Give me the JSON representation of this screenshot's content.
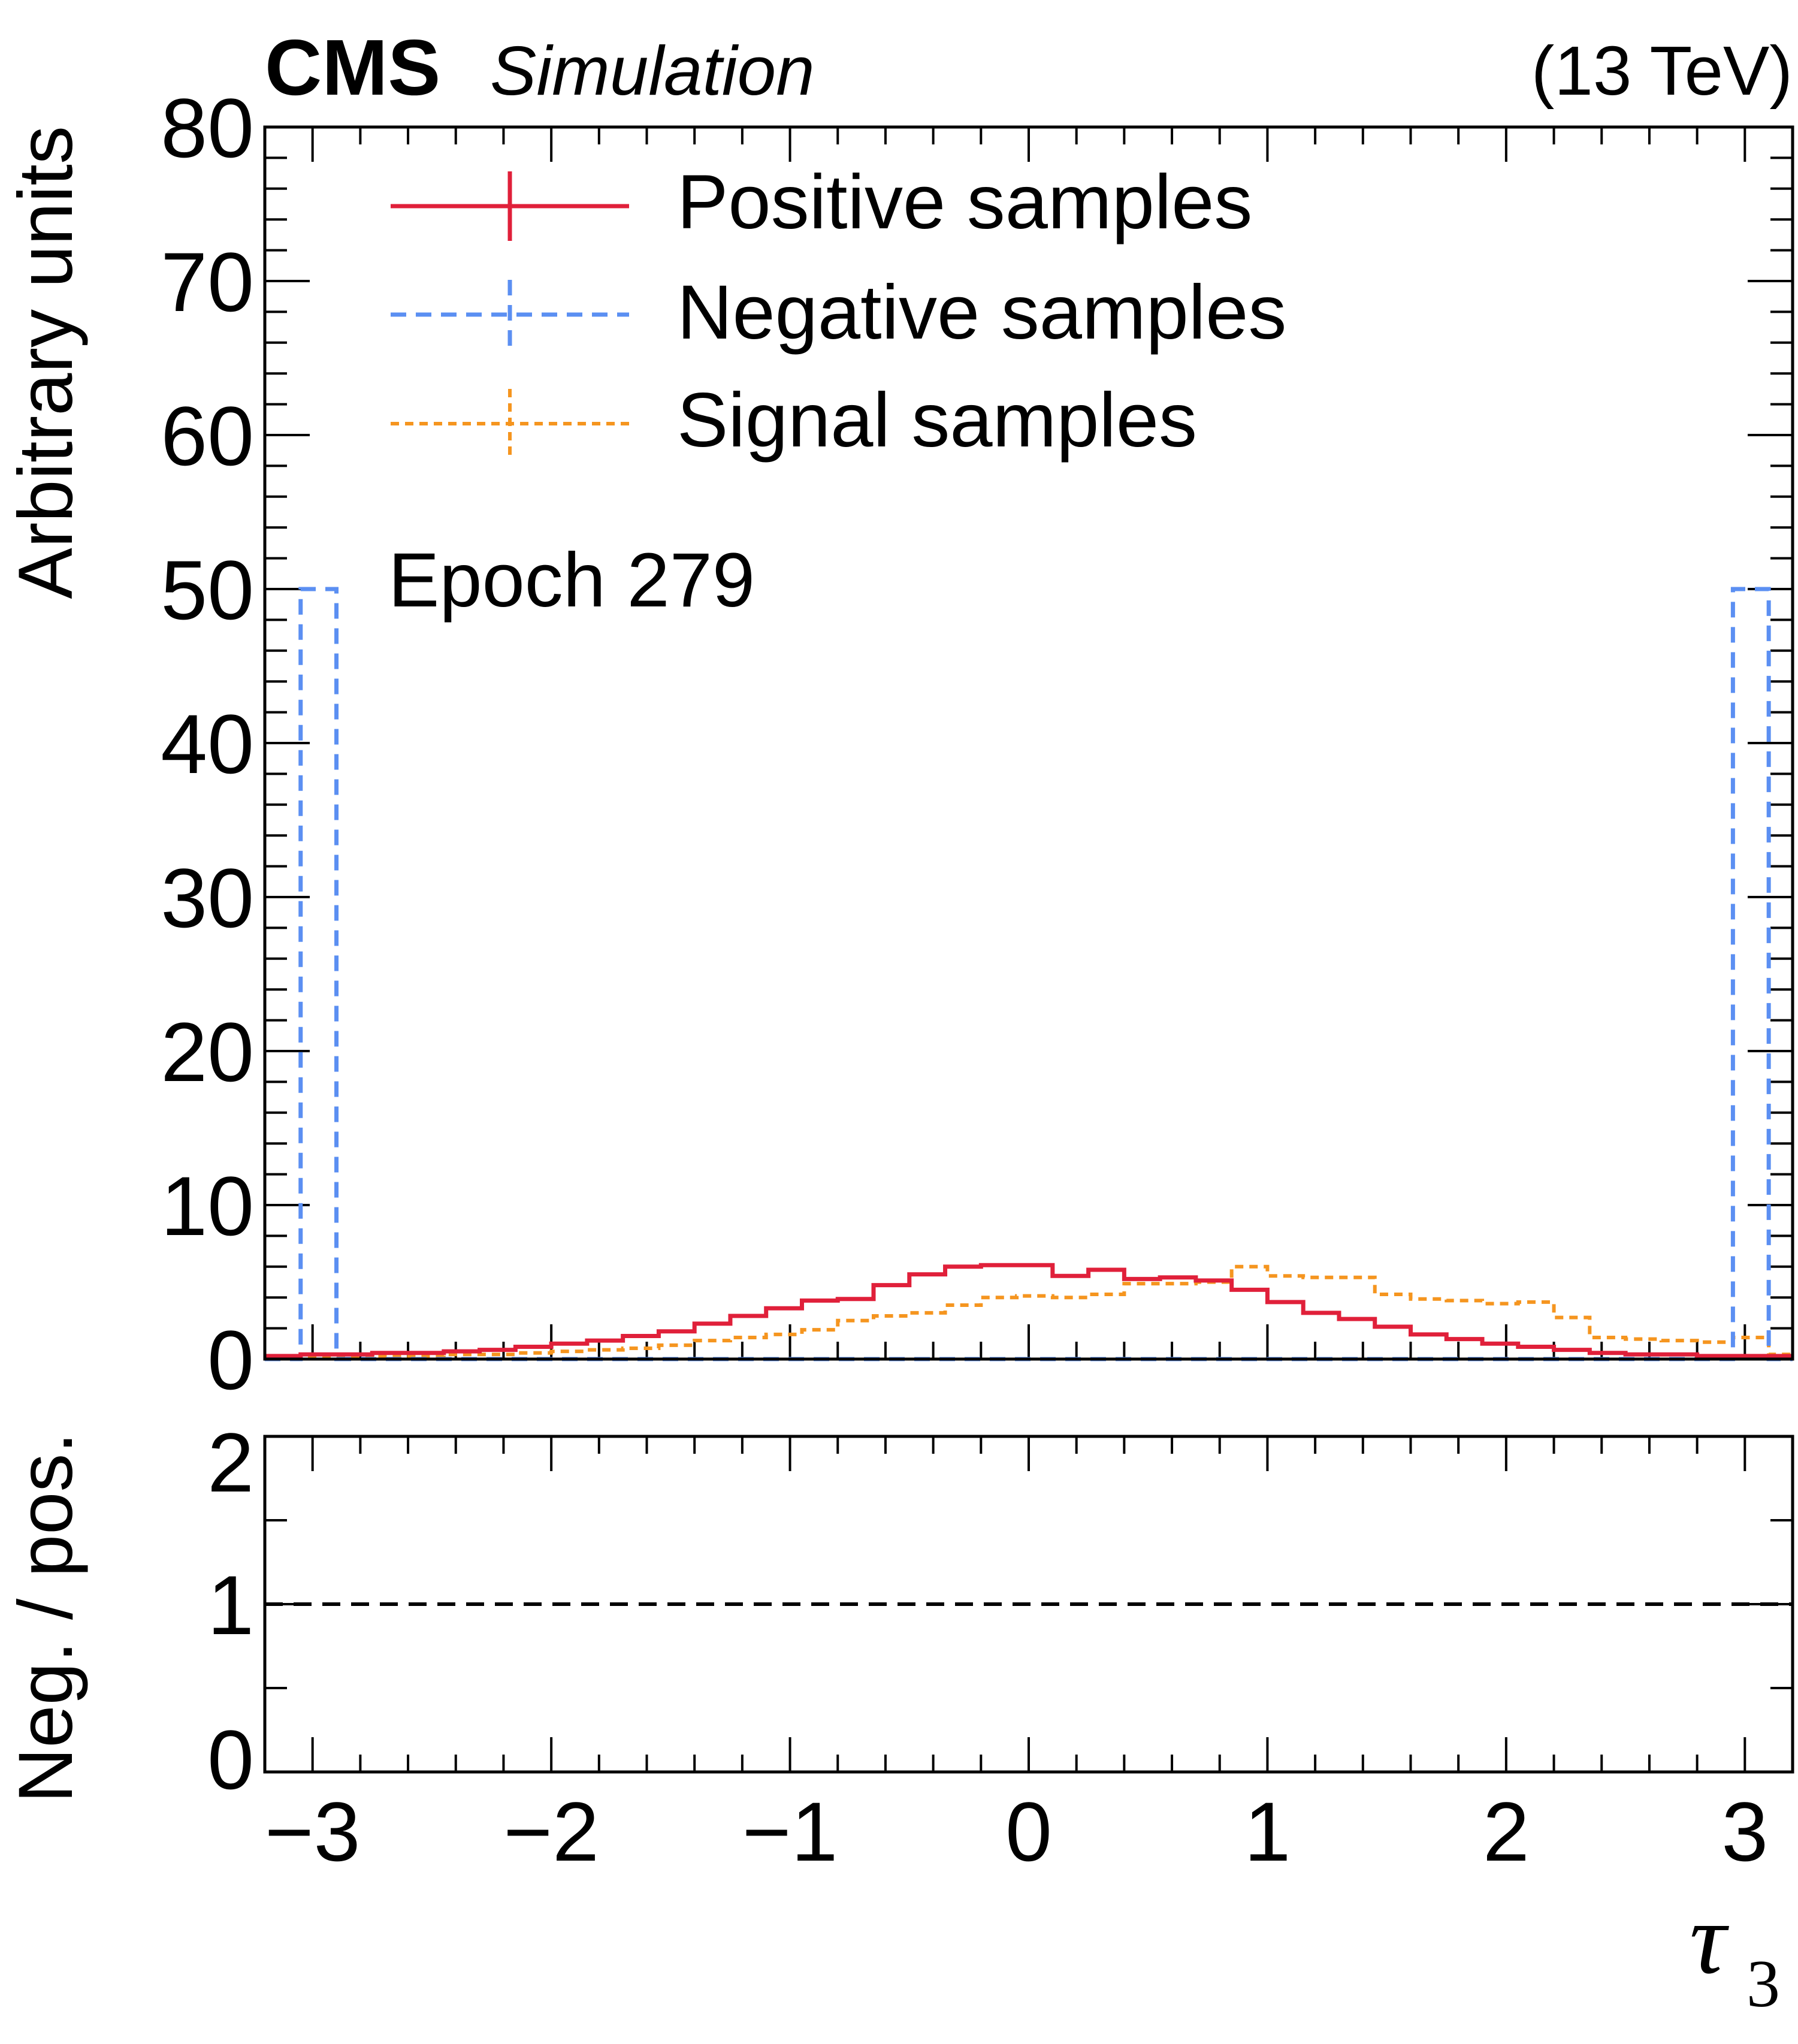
{
  "header": {
    "experiment": "CMS",
    "status": "Simulation",
    "energy": "(13 TeV)"
  },
  "annotation": "Epoch 279",
  "colors": {
    "positive": "#e0203a",
    "negative": "#5b8ff2",
    "signal": "#f5951f",
    "axis": "#000000",
    "reference_line": "#000000"
  },
  "chart_data": [
    {
      "type": "step-histogram",
      "panel": "main",
      "ylabel": "Arbitrary units",
      "xlim": [
        -3.2,
        3.2
      ],
      "ylim": [
        0,
        80
      ],
      "yticks": [
        0,
        10,
        20,
        30,
        40,
        50,
        60,
        70,
        80
      ],
      "ytick_labels": [
        "0",
        "10",
        "20",
        "30",
        "40",
        "50",
        "60",
        "70",
        "80"
      ],
      "bin_edges": [
        -3.2,
        -3.05,
        -2.9,
        -2.75,
        -2.6,
        -2.45,
        -2.3,
        -2.15,
        -2.0,
        -1.85,
        -1.7,
        -1.55,
        -1.4,
        -1.25,
        -1.1,
        -0.95,
        -0.8,
        -0.65,
        -0.5,
        -0.35,
        -0.2,
        -0.05,
        0.1,
        0.25,
        0.4,
        0.55,
        0.7,
        0.85,
        1.0,
        1.15,
        1.3,
        1.45,
        1.6,
        1.75,
        1.9,
        2.05,
        2.2,
        2.35,
        2.5,
        2.65,
        2.8,
        2.95,
        3.1,
        3.2
      ],
      "series": [
        {
          "name": "Positive samples",
          "style": "solid",
          "values": [
            0.2,
            0.3,
            0.3,
            0.4,
            0.4,
            0.5,
            0.6,
            0.8,
            1.0,
            1.2,
            1.5,
            1.8,
            2.3,
            2.8,
            3.3,
            3.8,
            3.9,
            4.8,
            5.5,
            6.0,
            6.1,
            6.1,
            5.4,
            5.8,
            5.2,
            5.3,
            5.1,
            4.5,
            3.7,
            3.0,
            2.6,
            2.1,
            1.6,
            1.3,
            1.0,
            0.8,
            0.6,
            0.4,
            0.3,
            0.3,
            0.2,
            0.2,
            0.2
          ]
        },
        {
          "name": "Negative samples",
          "style": "dashed",
          "values": [
            0.0,
            50.0,
            0.0,
            0.0,
            0.0,
            0.0,
            0.0,
            0.0,
            0.0,
            0.0,
            0.0,
            0.0,
            0.0,
            0.0,
            0.0,
            0.0,
            0.0,
            0.0,
            0.0,
            0.0,
            0.0,
            0.0,
            0.0,
            0.0,
            0.0,
            0.0,
            0.0,
            0.0,
            0.0,
            0.0,
            0.0,
            0.0,
            0.0,
            0.0,
            0.0,
            0.0,
            0.0,
            0.0,
            0.0,
            0.0,
            0.0,
            50.0,
            0.0
          ]
        },
        {
          "name": "Signal samples",
          "style": "dotted",
          "values": [
            0.1,
            0.1,
            0.1,
            0.2,
            0.2,
            0.3,
            0.3,
            0.4,
            0.5,
            0.6,
            0.7,
            0.9,
            1.2,
            1.4,
            1.6,
            1.9,
            2.5,
            2.8,
            3.0,
            3.5,
            4.0,
            4.1,
            4.0,
            4.2,
            4.9,
            4.9,
            5.0,
            6.0,
            5.4,
            5.3,
            5.3,
            4.2,
            3.9,
            3.8,
            3.6,
            3.7,
            2.7,
            1.4,
            1.3,
            1.2,
            1.1,
            1.4,
            0.3
          ]
        }
      ]
    },
    {
      "type": "ratio",
      "panel": "ratio",
      "ylabel": "Neg. / pos.",
      "xlabel": "τ",
      "xlabel_subscript": "3",
      "xlim": [
        -3.2,
        3.2
      ],
      "ylim": [
        0,
        2
      ],
      "yticks": [
        0,
        1,
        2
      ],
      "ytick_labels": [
        "0",
        "1",
        "2"
      ],
      "xticks": [
        -3,
        -2,
        -1,
        0,
        1,
        2,
        3
      ],
      "xtick_labels": [
        "−3",
        "−2",
        "−1",
        "0",
        "1",
        "2",
        "3"
      ],
      "reference_line": 1
    }
  ]
}
